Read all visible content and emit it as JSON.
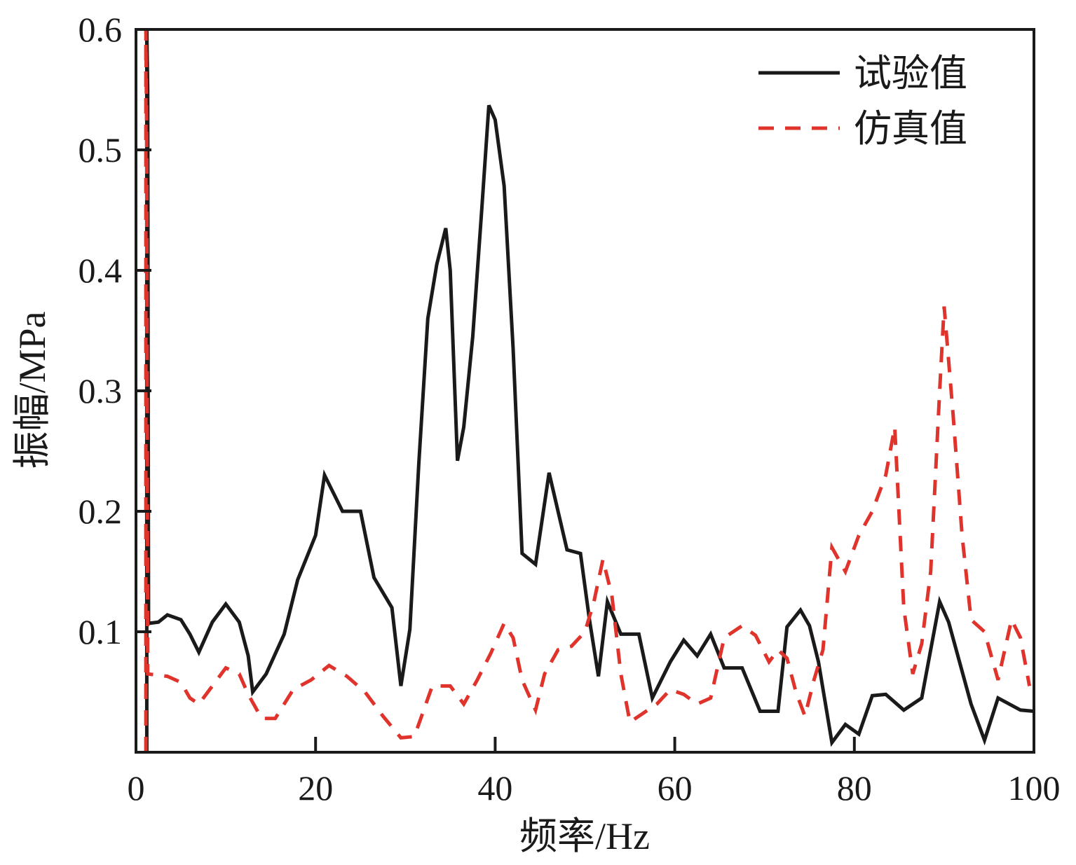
{
  "chart_data": {
    "type": "line",
    "xlabel": "频率/Hz",
    "ylabel": "振幅/MPa",
    "xlim": [
      0,
      100
    ],
    "ylim": [
      0,
      0.6
    ],
    "xticks": [
      0,
      20,
      40,
      60,
      80,
      100
    ],
    "xtick_labels": [
      "0",
      "20",
      "40",
      "60",
      "80",
      "100"
    ],
    "yticks": [
      0.1,
      0.2,
      0.3,
      0.4,
      0.5,
      0.6
    ],
    "ytick_labels": [
      "0.1",
      "0.2",
      "0.3",
      "0.4",
      "0.5",
      "0.6"
    ],
    "grid": false,
    "legend_position": "top-right",
    "series": [
      {
        "name": "试验值",
        "color": "#1a1a1a",
        "style": "solid",
        "points": [
          [
            1.2,
            0.0
          ],
          [
            1.2,
            0.6
          ],
          [
            1.3,
            0.55
          ],
          [
            1.4,
            0.107
          ],
          [
            2.5,
            0.108
          ],
          [
            3.5,
            0.114
          ],
          [
            5,
            0.11
          ],
          [
            6,
            0.098
          ],
          [
            7,
            0.083
          ],
          [
            8.5,
            0.108
          ],
          [
            10,
            0.123
          ],
          [
            11.5,
            0.108
          ],
          [
            12.5,
            0.08
          ],
          [
            13,
            0.05
          ],
          [
            14.5,
            0.065
          ],
          [
            16.5,
            0.098
          ],
          [
            18,
            0.143
          ],
          [
            20,
            0.18
          ],
          [
            21,
            0.23
          ],
          [
            22,
            0.215
          ],
          [
            23,
            0.2
          ],
          [
            24,
            0.2
          ],
          [
            25,
            0.2
          ],
          [
            26.5,
            0.145
          ],
          [
            28.5,
            0.12
          ],
          [
            29.5,
            0.055
          ],
          [
            30.5,
            0.102
          ],
          [
            31.5,
            0.24
          ],
          [
            32.5,
            0.36
          ],
          [
            33.5,
            0.405
          ],
          [
            34.5,
            0.435
          ],
          [
            35,
            0.4
          ],
          [
            35.8,
            0.242
          ],
          [
            36.5,
            0.27
          ],
          [
            37.5,
            0.345
          ],
          [
            38.5,
            0.45
          ],
          [
            39.3,
            0.537
          ],
          [
            40,
            0.525
          ],
          [
            41,
            0.47
          ],
          [
            42,
            0.335
          ],
          [
            43,
            0.165
          ],
          [
            44.5,
            0.156
          ],
          [
            46,
            0.232
          ],
          [
            47,
            0.2
          ],
          [
            48,
            0.168
          ],
          [
            49.5,
            0.165
          ],
          [
            50.5,
            0.11
          ],
          [
            51.5,
            0.063
          ],
          [
            52.5,
            0.125
          ],
          [
            54,
            0.098
          ],
          [
            56,
            0.098
          ],
          [
            57.5,
            0.045
          ],
          [
            59.5,
            0.075
          ],
          [
            61,
            0.093
          ],
          [
            62.5,
            0.08
          ],
          [
            64,
            0.098
          ],
          [
            65.5,
            0.07
          ],
          [
            67.5,
            0.07
          ],
          [
            69.5,
            0.034
          ],
          [
            71.5,
            0.034
          ],
          [
            72.5,
            0.104
          ],
          [
            74,
            0.118
          ],
          [
            75,
            0.105
          ],
          [
            76,
            0.075
          ],
          [
            77.5,
            0.008
          ],
          [
            79,
            0.023
          ],
          [
            80.5,
            0.015
          ],
          [
            82,
            0.047
          ],
          [
            83.5,
            0.048
          ],
          [
            85.5,
            0.035
          ],
          [
            87.5,
            0.045
          ],
          [
            89.5,
            0.125
          ],
          [
            90.5,
            0.108
          ],
          [
            93,
            0.04
          ],
          [
            94.5,
            0.01
          ],
          [
            96,
            0.045
          ],
          [
            98.5,
            0.035
          ],
          [
            100,
            0.034
          ]
        ]
      },
      {
        "name": "仿真值",
        "color": "#e0332b",
        "style": "dashed",
        "points": [
          [
            1.1,
            0.0
          ],
          [
            1.1,
            0.6
          ],
          [
            1.2,
            0.5
          ],
          [
            1.3,
            0.065
          ],
          [
            3.5,
            0.063
          ],
          [
            5,
            0.058
          ],
          [
            6,
            0.045
          ],
          [
            7,
            0.04
          ],
          [
            8.5,
            0.055
          ],
          [
            10,
            0.07
          ],
          [
            11.5,
            0.065
          ],
          [
            12.5,
            0.048
          ],
          [
            14,
            0.028
          ],
          [
            15.5,
            0.028
          ],
          [
            17.5,
            0.052
          ],
          [
            19.5,
            0.06
          ],
          [
            21.5,
            0.072
          ],
          [
            23.5,
            0.063
          ],
          [
            25.5,
            0.05
          ],
          [
            27.5,
            0.03
          ],
          [
            29.5,
            0.012
          ],
          [
            31,
            0.013
          ],
          [
            33,
            0.055
          ],
          [
            35,
            0.055
          ],
          [
            36.5,
            0.04
          ],
          [
            38,
            0.06
          ],
          [
            39.5,
            0.082
          ],
          [
            41,
            0.107
          ],
          [
            42,
            0.095
          ],
          [
            43,
            0.06
          ],
          [
            44.5,
            0.035
          ],
          [
            45.5,
            0.065
          ],
          [
            47,
            0.085
          ],
          [
            48.5,
            0.088
          ],
          [
            50,
            0.1
          ],
          [
            51,
            0.125
          ],
          [
            52,
            0.16
          ],
          [
            53,
            0.13
          ],
          [
            54,
            0.065
          ],
          [
            55,
            0.025
          ],
          [
            56,
            0.03
          ],
          [
            58,
            0.04
          ],
          [
            59.5,
            0.052
          ],
          [
            61,
            0.048
          ],
          [
            62.5,
            0.04
          ],
          [
            64,
            0.045
          ],
          [
            65.5,
            0.095
          ],
          [
            67.5,
            0.105
          ],
          [
            69,
            0.097
          ],
          [
            70.5,
            0.075
          ],
          [
            71.5,
            0.085
          ],
          [
            72.5,
            0.078
          ],
          [
            73.5,
            0.05
          ],
          [
            74.5,
            0.03
          ],
          [
            75.5,
            0.06
          ],
          [
            76.5,
            0.085
          ],
          [
            77.5,
            0.17
          ],
          [
            79,
            0.15
          ],
          [
            80.5,
            0.18
          ],
          [
            82,
            0.2
          ],
          [
            83.5,
            0.23
          ],
          [
            84.5,
            0.27
          ],
          [
            85.5,
            0.12
          ],
          [
            86.5,
            0.065
          ],
          [
            87.5,
            0.09
          ],
          [
            88.5,
            0.15
          ],
          [
            89.5,
            0.3
          ],
          [
            90,
            0.37
          ],
          [
            91,
            0.28
          ],
          [
            92,
            0.18
          ],
          [
            93,
            0.11
          ],
          [
            94.5,
            0.1
          ],
          [
            96,
            0.06
          ],
          [
            97.5,
            0.11
          ],
          [
            98.5,
            0.095
          ],
          [
            99.5,
            0.055
          ]
        ]
      }
    ]
  }
}
